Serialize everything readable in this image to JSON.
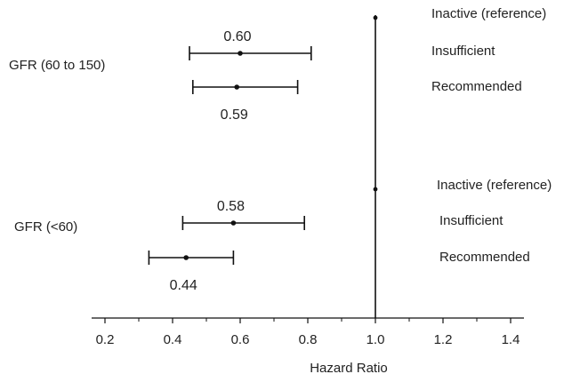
{
  "chart_data": {
    "type": "forest",
    "title": "",
    "xlabel": "Hazard Ratio",
    "ylabel": "",
    "xlim": [
      0.15,
      1.45
    ],
    "xticks": [
      "0.2",
      "0.4",
      "0.6",
      "0.8",
      "1.0",
      "1.2",
      "1.4"
    ],
    "reference_line": 1.0,
    "grid": false,
    "groups": [
      {
        "label": "GFR (60 to 150)",
        "rows": [
          {
            "category": "Inactive (reference)",
            "estimate": 1.0,
            "ci": null,
            "value_label": ""
          },
          {
            "category": "Insufficient",
            "estimate": 0.6,
            "ci": [
              0.45,
              0.81
            ],
            "value_label": "0.60"
          },
          {
            "category": "Recommended",
            "estimate": 0.59,
            "ci": [
              0.46,
              0.77
            ],
            "value_label": "0.59"
          }
        ]
      },
      {
        "label": "GFR (<60)",
        "rows": [
          {
            "category": "Inactive (reference)",
            "estimate": 1.0,
            "ci": null,
            "value_label": ""
          },
          {
            "category": "Insufficient",
            "estimate": 0.58,
            "ci": [
              0.43,
              0.79
            ],
            "value_label": "0.58"
          },
          {
            "category": "Recommended",
            "estimate": 0.44,
            "ci": [
              0.33,
              0.58
            ],
            "value_label": "0.44"
          }
        ]
      }
    ],
    "colors": {
      "ink": "#111111",
      "text": "#222222"
    }
  }
}
